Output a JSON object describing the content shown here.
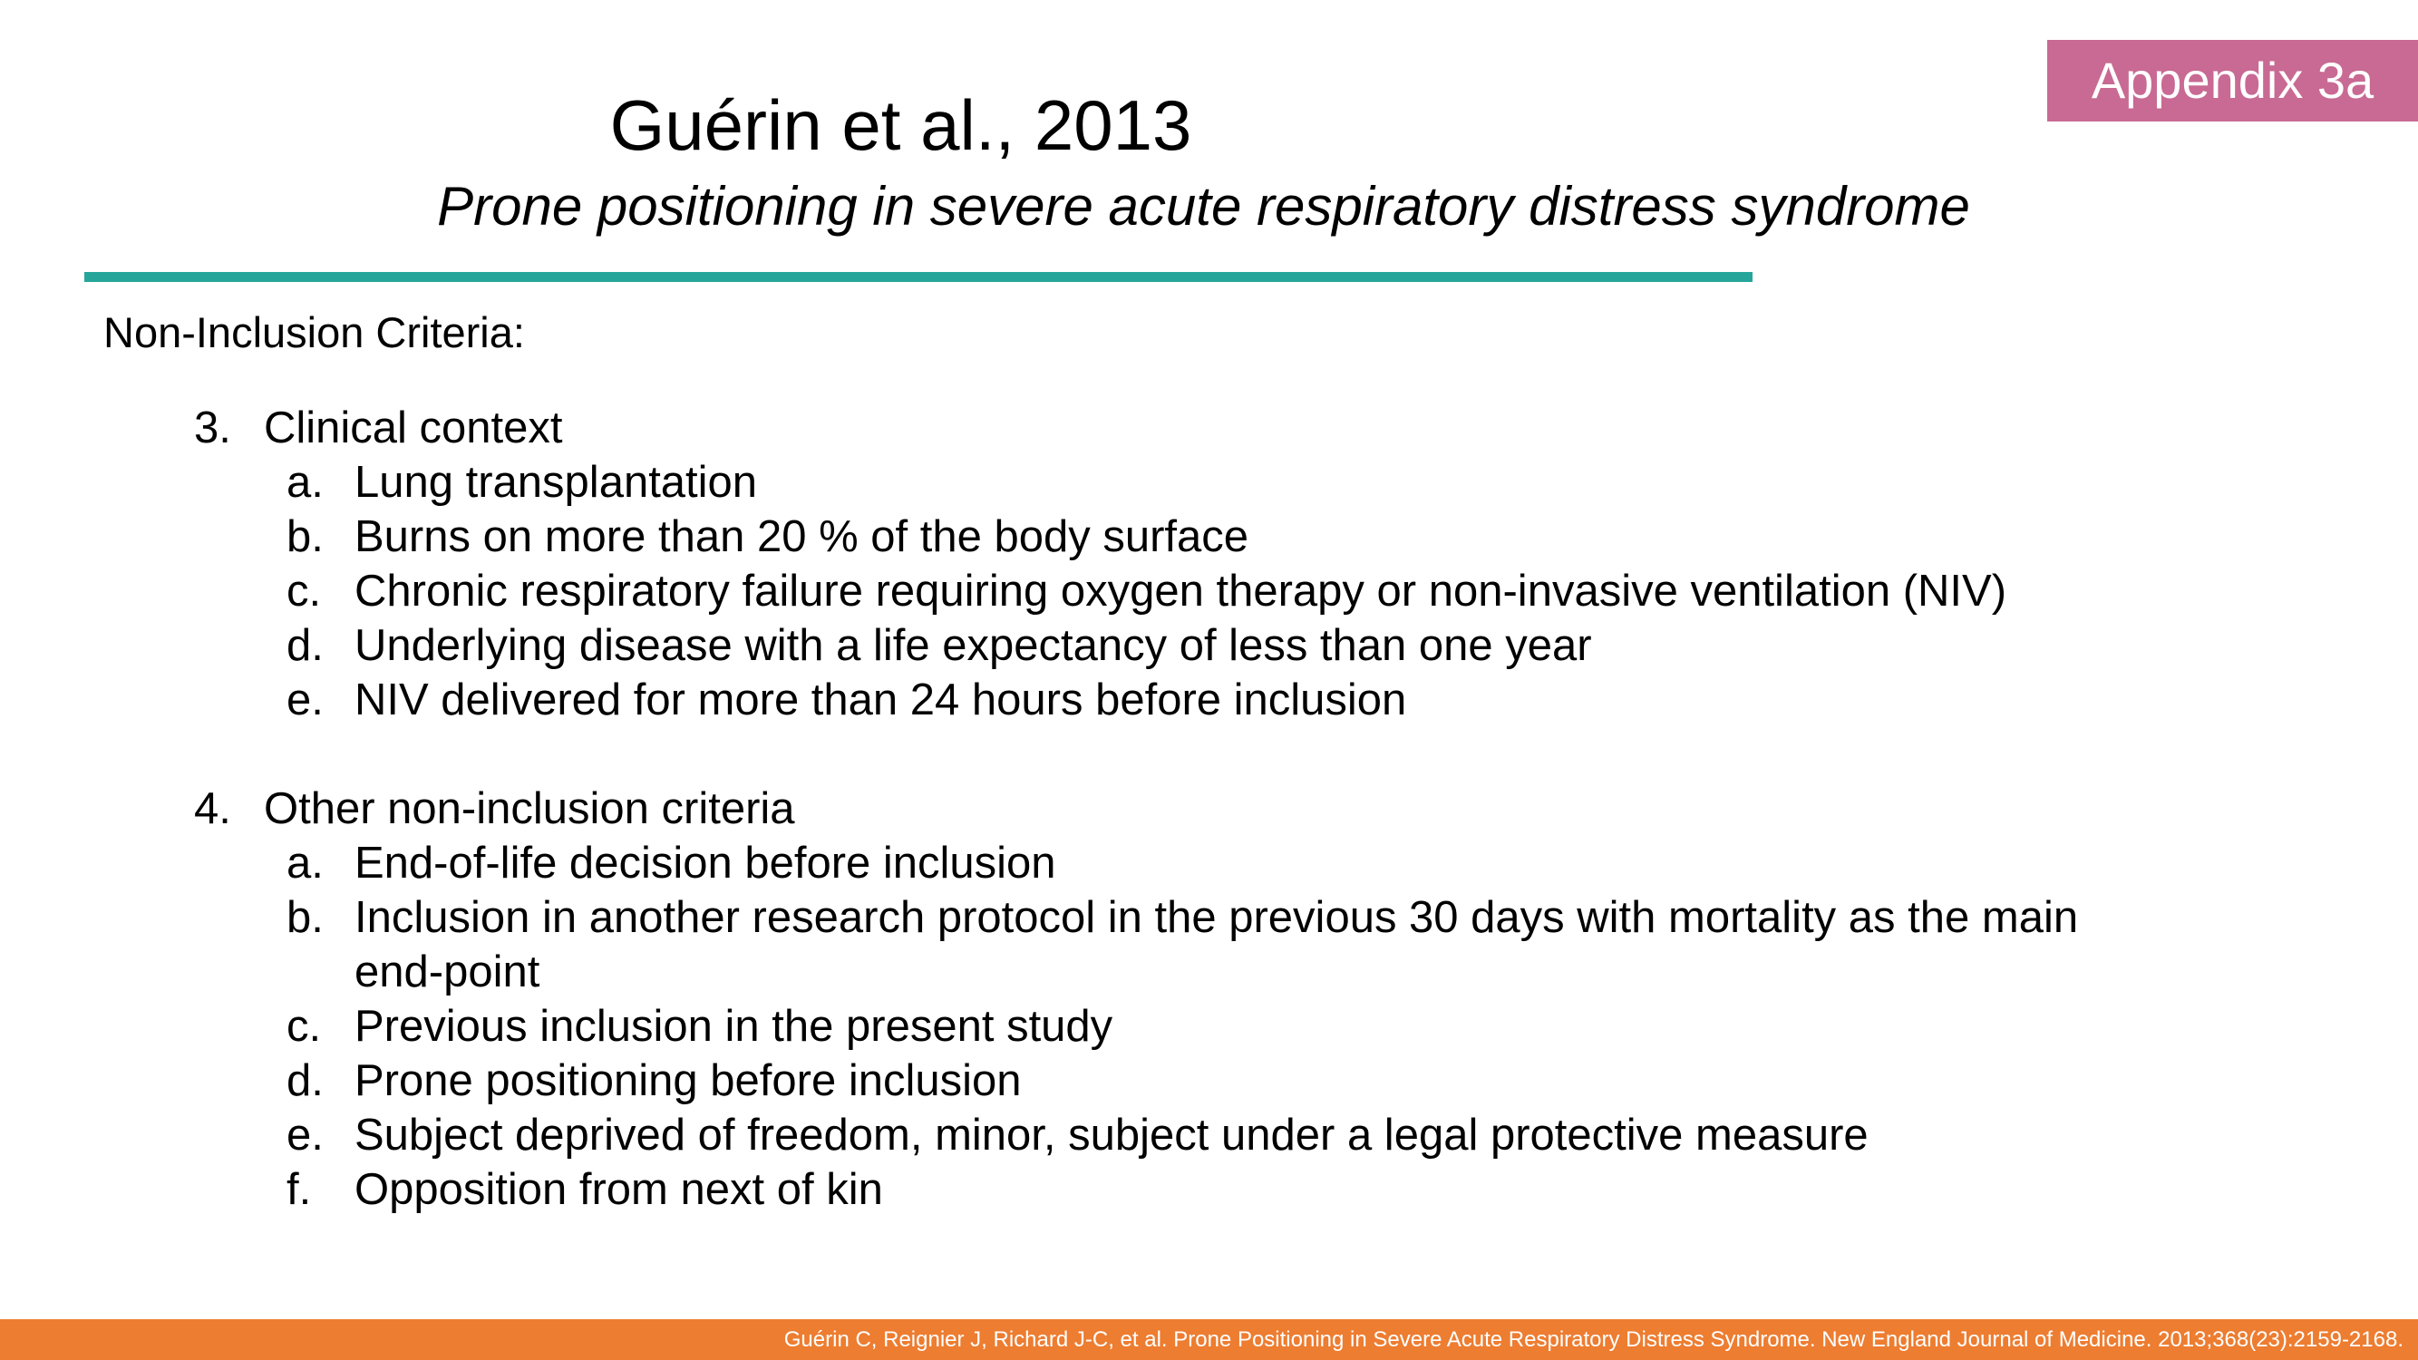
{
  "badge": "Appendix 3a",
  "title": "Guérin et al., 2013",
  "subtitle": "Prone positioning in severe acute respiratory distress syndrome",
  "section_heading": "Non-Inclusion Criteria:",
  "groups": [
    {
      "number": "3.",
      "label": "Clinical context",
      "items": [
        {
          "letter": "a.",
          "text": "Lung transplantation"
        },
        {
          "letter": "b.",
          "text": "Burns on more than 20 % of the body surface"
        },
        {
          "letter": "c.",
          "text": "Chronic respiratory failure requiring oxygen therapy or non-invasive ventilation (NIV)"
        },
        {
          "letter": "d.",
          "text": "Underlying disease with a life expectancy of less than one year"
        },
        {
          "letter": "e.",
          "text": "NIV delivered for more than 24 hours before inclusion"
        }
      ]
    },
    {
      "number": "4.",
      "label": "Other non-inclusion criteria",
      "items": [
        {
          "letter": "a.",
          "text": "End-of-life decision before inclusion"
        },
        {
          "letter": "b.",
          "text": "Inclusion in another research protocol in the previous 30 days with mortality as the main",
          "continuation": "end-point"
        },
        {
          "letter": "c.",
          "text": "Previous inclusion in the present study"
        },
        {
          "letter": "d.",
          "text": "Prone positioning before inclusion"
        },
        {
          "letter": "e.",
          "text": "Subject deprived of freedom, minor, subject under a legal protective measure"
        },
        {
          "letter": "f.",
          "text": "Opposition from next of kin"
        }
      ]
    }
  ],
  "footer": "Guérin C, Reignier J, Richard J-C, et al. Prone Positioning in Severe Acute Respiratory Distress Syndrome. New England Journal of Medicine. 2013;368(23):2159-2168.",
  "colors": {
    "badge": "#c86a93",
    "rule": "#26a69a",
    "footer": "#ed7d31"
  }
}
